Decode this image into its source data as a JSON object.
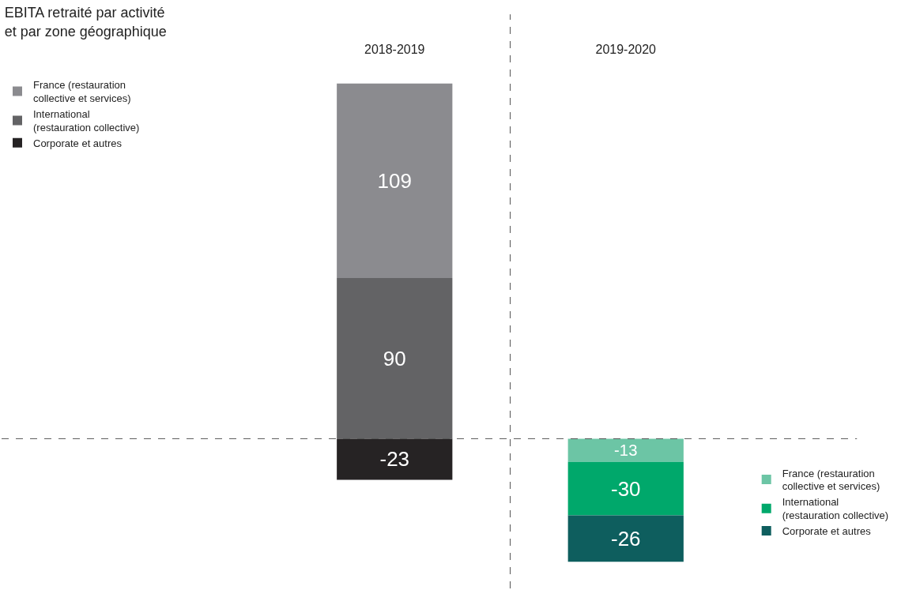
{
  "chart_data": {
    "type": "bar",
    "title": "EBITA retraité par activité\net par zone géographique",
    "categories": [
      "2018-2019",
      "2019-2020"
    ],
    "stacked": true,
    "data_labels": true,
    "legend": "left",
    "series": [
      {
        "name": "International\n(restauration collective)",
        "color": "#636365",
        "values": [
          90,
          null
        ]
      },
      {
        "name": "France (restauration\ncollective et services)",
        "color": "#8b8b8f",
        "values": [
          109,
          null
        ]
      },
      {
        "name": "Corporate et autres",
        "color": "#262324",
        "values": [
          -23,
          null
        ]
      },
      {
        "name": "France (restauration\ncollective et services)",
        "color": "#6cc5a5",
        "values": [
          null,
          -13
        ]
      },
      {
        "name": "International\n(restauration collective)",
        "color": "#00a86b",
        "values": [
          null,
          -30
        ]
      },
      {
        "name": "Corporate et autres",
        "color": "#0e5e5e",
        "values": [
          null,
          -26
        ]
      }
    ],
    "ref_lines": [
      {
        "axis": "y",
        "value": 0,
        "label": null,
        "color": "#555555",
        "line_style": "dashed"
      }
    ]
  }
}
